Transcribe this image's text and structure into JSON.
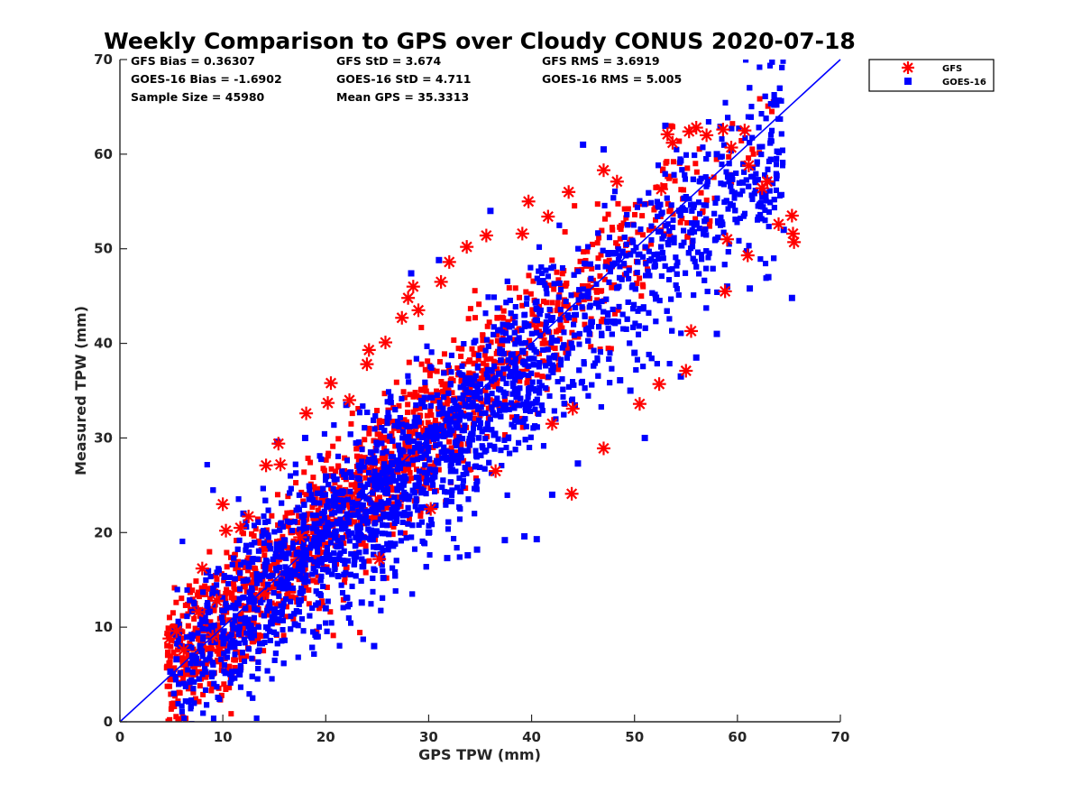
{
  "chart_data": {
    "type": "scatter",
    "title": "Weekly Comparison to GPS over Cloudy CONUS 2020-07-18",
    "xlabel": "GPS TPW (mm)",
    "ylabel": "Measured TPW (mm)",
    "xlim": [
      0,
      70
    ],
    "ylim": [
      0,
      70
    ],
    "xticks": [
      0,
      10,
      20,
      30,
      40,
      50,
      60,
      70
    ],
    "yticks": [
      0,
      10,
      20,
      30,
      40,
      50,
      60,
      70
    ],
    "grid": false,
    "legend_position": "outside top-right",
    "reference_line": {
      "from": [
        0,
        0
      ],
      "to": [
        70,
        70
      ],
      "color": "#0000ff"
    },
    "stats": [
      [
        "GFS Bias = 0.36307",
        "GFS StD = 3.674",
        "GFS RMS = 3.6919"
      ],
      [
        "GOES-16 Bias = -1.6902",
        "GOES-16 StD = 4.711",
        "GOES-16 RMS = 5.005"
      ],
      [
        "Sample Size = 45980",
        "Mean GPS = 35.3313",
        ""
      ]
    ],
    "series": [
      {
        "name": "GFS",
        "marker": "asterisk",
        "color": "#ff0000",
        "points": [
          [
            4.8,
            8.8
          ],
          [
            5.5,
            9.6
          ],
          [
            6.2,
            7.6
          ],
          [
            7.6,
            11.6
          ],
          [
            8.0,
            16.2
          ],
          [
            9.4,
            12.8
          ],
          [
            10.0,
            23.0
          ],
          [
            10.3,
            20.2
          ],
          [
            11.7,
            20.5
          ],
          [
            12.5,
            21.7
          ],
          [
            14.2,
            27.1
          ],
          [
            15.4,
            29.4
          ],
          [
            15.6,
            27.2
          ],
          [
            18.1,
            32.6
          ],
          [
            20.2,
            33.7
          ],
          [
            20.5,
            35.8
          ],
          [
            22.3,
            34.0
          ],
          [
            24.0,
            37.8
          ],
          [
            24.2,
            39.3
          ],
          [
            25.8,
            40.1
          ],
          [
            27.4,
            42.7
          ],
          [
            28.0,
            44.8
          ],
          [
            28.5,
            46.0
          ],
          [
            29.0,
            43.5
          ],
          [
            31.2,
            46.5
          ],
          [
            32.0,
            48.6
          ],
          [
            33.7,
            50.2
          ],
          [
            35.6,
            51.4
          ],
          [
            39.1,
            51.6
          ],
          [
            39.7,
            55.0
          ],
          [
            41.6,
            53.4
          ],
          [
            43.6,
            56.0
          ],
          [
            47.0,
            58.3
          ],
          [
            48.3,
            57.1
          ],
          [
            52.6,
            56.3
          ],
          [
            53.2,
            62.1
          ],
          [
            53.7,
            61.2
          ],
          [
            55.3,
            62.4
          ],
          [
            56.0,
            62.8
          ],
          [
            57.0,
            62.0
          ],
          [
            58.6,
            62.6
          ],
          [
            59.4,
            60.7
          ],
          [
            60.7,
            62.5
          ],
          [
            61.1,
            58.8
          ],
          [
            62.4,
            56.4
          ],
          [
            62.9,
            57.1
          ],
          [
            64.0,
            52.6
          ],
          [
            65.3,
            53.5
          ],
          [
            65.5,
            50.7
          ],
          [
            65.4,
            51.6
          ],
          [
            55.0,
            37.1
          ],
          [
            43.9,
            24.1
          ],
          [
            44.0,
            33.1
          ],
          [
            47.0,
            28.9
          ],
          [
            50.5,
            33.6
          ],
          [
            52.4,
            35.7
          ],
          [
            55.5,
            41.3
          ],
          [
            58.8,
            45.5
          ],
          [
            59.0,
            51.0
          ],
          [
            61.0,
            49.3
          ],
          [
            42.0,
            31.5
          ],
          [
            36.5,
            26.5
          ],
          [
            30.2,
            22.5
          ],
          [
            25.2,
            17.2
          ],
          [
            14.0,
            13.6
          ],
          [
            9.0,
            9.0
          ],
          [
            17.5,
            19.5
          ]
        ]
      },
      {
        "name": "GOES-16",
        "marker": "square",
        "color": "#0000ff",
        "points": [
          [
            4.9,
            5.3
          ],
          [
            5.5,
            6.6
          ],
          [
            6.8,
            4.2
          ],
          [
            7.8,
            8.0
          ],
          [
            8.9,
            10.1
          ],
          [
            11.6,
            5.2
          ],
          [
            12.8,
            8.9
          ],
          [
            15.0,
            10.8
          ],
          [
            15.3,
            29.6
          ],
          [
            17.0,
            10.3
          ],
          [
            19.0,
            9.2
          ],
          [
            20.0,
            12.0
          ],
          [
            22.0,
            13.1
          ],
          [
            23.5,
            12.6
          ],
          [
            24.7,
            8.0
          ],
          [
            25.6,
            15.2
          ],
          [
            28.3,
            47.4
          ],
          [
            31.8,
            17.3
          ],
          [
            33.8,
            17.6
          ],
          [
            34.7,
            18.2
          ],
          [
            37.4,
            19.2
          ],
          [
            39.3,
            19.6
          ],
          [
            40.5,
            19.3
          ],
          [
            44.5,
            27.3
          ],
          [
            48.6,
            36.1
          ],
          [
            49.6,
            35.0
          ],
          [
            51.0,
            30.0
          ],
          [
            54.5,
            36.5
          ],
          [
            56.0,
            38.5
          ],
          [
            58.0,
            41.0
          ],
          [
            59.0,
            46.0
          ],
          [
            61.2,
            45.8
          ],
          [
            63.0,
            47.0
          ],
          [
            65.3,
            44.8
          ],
          [
            64.5,
            52.0
          ],
          [
            62.4,
            56.0
          ],
          [
            58.0,
            60.0
          ],
          [
            47.0,
            60.5
          ],
          [
            45.0,
            61.0
          ],
          [
            36.0,
            54.0
          ],
          [
            31.0,
            48.8
          ],
          [
            22.0,
            33.5
          ],
          [
            18.0,
            30.0
          ],
          [
            12.0,
            22.0
          ],
          [
            30.0,
            20.0
          ],
          [
            42.0,
            24.0
          ],
          [
            50.0,
            39.0
          ],
          [
            60.5,
            57.0
          ],
          [
            53.0,
            63.0
          ]
        ]
      }
    ],
    "point_cloud": {
      "description_note": "",
      "main_band_slope": 1.0,
      "main_band_offset": -1.6902,
      "x_range": [
        4.5,
        65.5
      ],
      "spread_std": 4.711
    }
  }
}
